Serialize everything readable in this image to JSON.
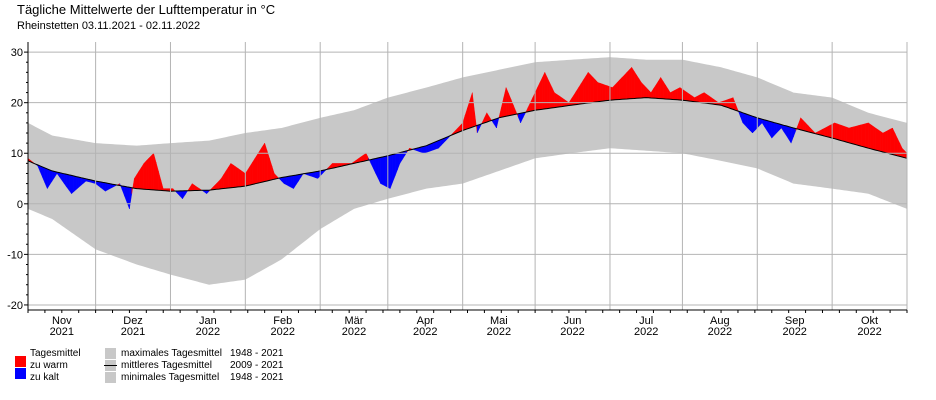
{
  "title": "Tägliche Mittelwerte der Lufttemperatur in °C",
  "subtitle": "Rheinstetten  03.11.2021 - 02.11.2022",
  "colors": {
    "warm": "#ff0000",
    "cold": "#0000ff",
    "range": "#c8c8c8",
    "mean": "#000000",
    "grid": "#b4b4b4"
  },
  "chart_data": {
    "type": "area",
    "title": "Tägliche Mittelwerte der Lufttemperatur in °C",
    "station": "Rheinstetten",
    "period": "03.11.2021 - 02.11.2022",
    "ylim": [
      -21,
      32
    ],
    "y_ticks": [
      -20,
      -10,
      0,
      10,
      20,
      30
    ],
    "grid": true,
    "months": [
      {
        "label": "Nov",
        "year": "2021"
      },
      {
        "label": "Dez",
        "year": "2021"
      },
      {
        "label": "Jan",
        "year": "2022"
      },
      {
        "label": "Feb",
        "year": "2022"
      },
      {
        "label": "Mär",
        "year": "2022"
      },
      {
        "label": "Apr",
        "year": "2022"
      },
      {
        "label": "Mai",
        "year": "2022"
      },
      {
        "label": "Jun",
        "year": "2022"
      },
      {
        "label": "Jul",
        "year": "2022"
      },
      {
        "label": "Aug",
        "year": "2022"
      },
      {
        "label": "Sep",
        "year": "2022"
      },
      {
        "label": "Okt",
        "year": "2022"
      }
    ],
    "month_start_days": [
      0,
      28,
      59,
      90,
      121,
      149,
      180,
      210,
      241,
      271,
      302,
      333,
      364
    ],
    "series_keypoints": {
      "mean_2009_2021": [
        [
          0,
          8.5
        ],
        [
          10,
          6.5
        ],
        [
          28,
          4.5
        ],
        [
          45,
          3
        ],
        [
          59,
          2.5
        ],
        [
          75,
          2.7
        ],
        [
          90,
          3.5
        ],
        [
          105,
          5.2
        ],
        [
          121,
          6.5
        ],
        [
          135,
          8
        ],
        [
          149,
          9.5
        ],
        [
          165,
          11.5
        ],
        [
          180,
          14.5
        ],
        [
          195,
          17
        ],
        [
          210,
          18.5
        ],
        [
          225,
          19.5
        ],
        [
          241,
          20.5
        ],
        [
          256,
          21
        ],
        [
          271,
          20.5
        ],
        [
          287,
          19.5
        ],
        [
          302,
          17
        ],
        [
          317,
          15
        ],
        [
          333,
          13
        ],
        [
          348,
          11
        ],
        [
          364,
          9
        ]
      ],
      "max_1948_2021": [
        [
          0,
          16
        ],
        [
          10,
          13.5
        ],
        [
          28,
          12
        ],
        [
          45,
          11.5
        ],
        [
          59,
          12
        ],
        [
          75,
          12.5
        ],
        [
          90,
          14
        ],
        [
          105,
          15
        ],
        [
          121,
          17
        ],
        [
          135,
          18.5
        ],
        [
          149,
          21
        ],
        [
          165,
          23
        ],
        [
          180,
          25
        ],
        [
          195,
          26.5
        ],
        [
          210,
          28
        ],
        [
          225,
          28.5
        ],
        [
          241,
          29
        ],
        [
          256,
          28.5
        ],
        [
          271,
          28.5
        ],
        [
          287,
          27
        ],
        [
          302,
          25
        ],
        [
          317,
          22
        ],
        [
          333,
          21
        ],
        [
          348,
          18
        ],
        [
          364,
          16
        ]
      ],
      "min_1948_2021": [
        [
          0,
          -1
        ],
        [
          10,
          -3
        ],
        [
          28,
          -9
        ],
        [
          45,
          -12
        ],
        [
          59,
          -14
        ],
        [
          75,
          -16
        ],
        [
          90,
          -15
        ],
        [
          105,
          -11
        ],
        [
          121,
          -5
        ],
        [
          135,
          -1
        ],
        [
          149,
          1
        ],
        [
          165,
          3
        ],
        [
          180,
          4
        ],
        [
          195,
          6.5
        ],
        [
          210,
          9
        ],
        [
          225,
          10
        ],
        [
          241,
          11
        ],
        [
          256,
          10.5
        ],
        [
          271,
          10
        ],
        [
          287,
          8.5
        ],
        [
          302,
          7
        ],
        [
          317,
          4
        ],
        [
          333,
          3
        ],
        [
          348,
          2
        ],
        [
          364,
          -1
        ]
      ],
      "daily_mean_2021_2022": [
        [
          0,
          9
        ],
        [
          4,
          7.5
        ],
        [
          8,
          3
        ],
        [
          12,
          6
        ],
        [
          18,
          2
        ],
        [
          24,
          4.5
        ],
        [
          28,
          4
        ],
        [
          32,
          2.5
        ],
        [
          38,
          4
        ],
        [
          42,
          -1
        ],
        [
          44,
          5
        ],
        [
          48,
          8
        ],
        [
          52,
          10
        ],
        [
          56,
          3
        ],
        [
          60,
          3
        ],
        [
          64,
          1
        ],
        [
          68,
          4
        ],
        [
          74,
          2
        ],
        [
          80,
          5
        ],
        [
          84,
          8
        ],
        [
          90,
          6
        ],
        [
          94,
          9
        ],
        [
          98,
          12
        ],
        [
          102,
          6
        ],
        [
          106,
          4
        ],
        [
          110,
          3
        ],
        [
          114,
          6
        ],
        [
          120,
          5
        ],
        [
          126,
          8
        ],
        [
          134,
          8
        ],
        [
          140,
          10
        ],
        [
          146,
          4
        ],
        [
          150,
          3
        ],
        [
          154,
          8
        ],
        [
          158,
          11
        ],
        [
          164,
          10
        ],
        [
          170,
          11
        ],
        [
          174,
          13
        ],
        [
          180,
          16
        ],
        [
          184,
          22
        ],
        [
          186,
          14
        ],
        [
          190,
          18
        ],
        [
          194,
          15
        ],
        [
          198,
          23
        ],
        [
          204,
          16
        ],
        [
          210,
          22
        ],
        [
          214,
          26
        ],
        [
          218,
          22
        ],
        [
          224,
          20
        ],
        [
          228,
          23
        ],
        [
          232,
          26
        ],
        [
          236,
          24
        ],
        [
          242,
          23
        ],
        [
          250,
          27
        ],
        [
          254,
          24
        ],
        [
          258,
          22
        ],
        [
          262,
          25
        ],
        [
          266,
          22
        ],
        [
          270,
          23
        ],
        [
          276,
          21
        ],
        [
          280,
          22
        ],
        [
          286,
          20
        ],
        [
          292,
          21
        ],
        [
          296,
          16
        ],
        [
          300,
          14
        ],
        [
          304,
          16
        ],
        [
          308,
          13
        ],
        [
          312,
          15
        ],
        [
          316,
          12
        ],
        [
          320,
          17
        ],
        [
          326,
          14
        ],
        [
          334,
          16
        ],
        [
          340,
          15
        ],
        [
          348,
          16
        ],
        [
          354,
          14
        ],
        [
          358,
          15
        ],
        [
          362,
          11
        ],
        [
          364,
          10
        ]
      ]
    },
    "legend": [
      {
        "label": "Tagesmittel",
        "sub": [
          "zu warm",
          "zu kalt"
        ]
      },
      {
        "label": "maximales Tagesmittel",
        "years": "1948 - 2021"
      },
      {
        "label": "mittleres Tagesmittel",
        "years": "2009 - 2021"
      },
      {
        "label": "minimales Tagesmittel",
        "years": "1948 - 2021"
      }
    ]
  },
  "legend": {
    "daily": "Tagesmittel",
    "warm": "zu warm",
    "cold": "zu kalt",
    "max_label": "maximales Tagesmittel",
    "max_years": "1948 - 2021",
    "mean_label": "mittleres Tagesmittel",
    "mean_years": "2009 - 2021",
    "min_label": "minimales Tagesmittel",
    "min_years": "1948 - 2021"
  }
}
